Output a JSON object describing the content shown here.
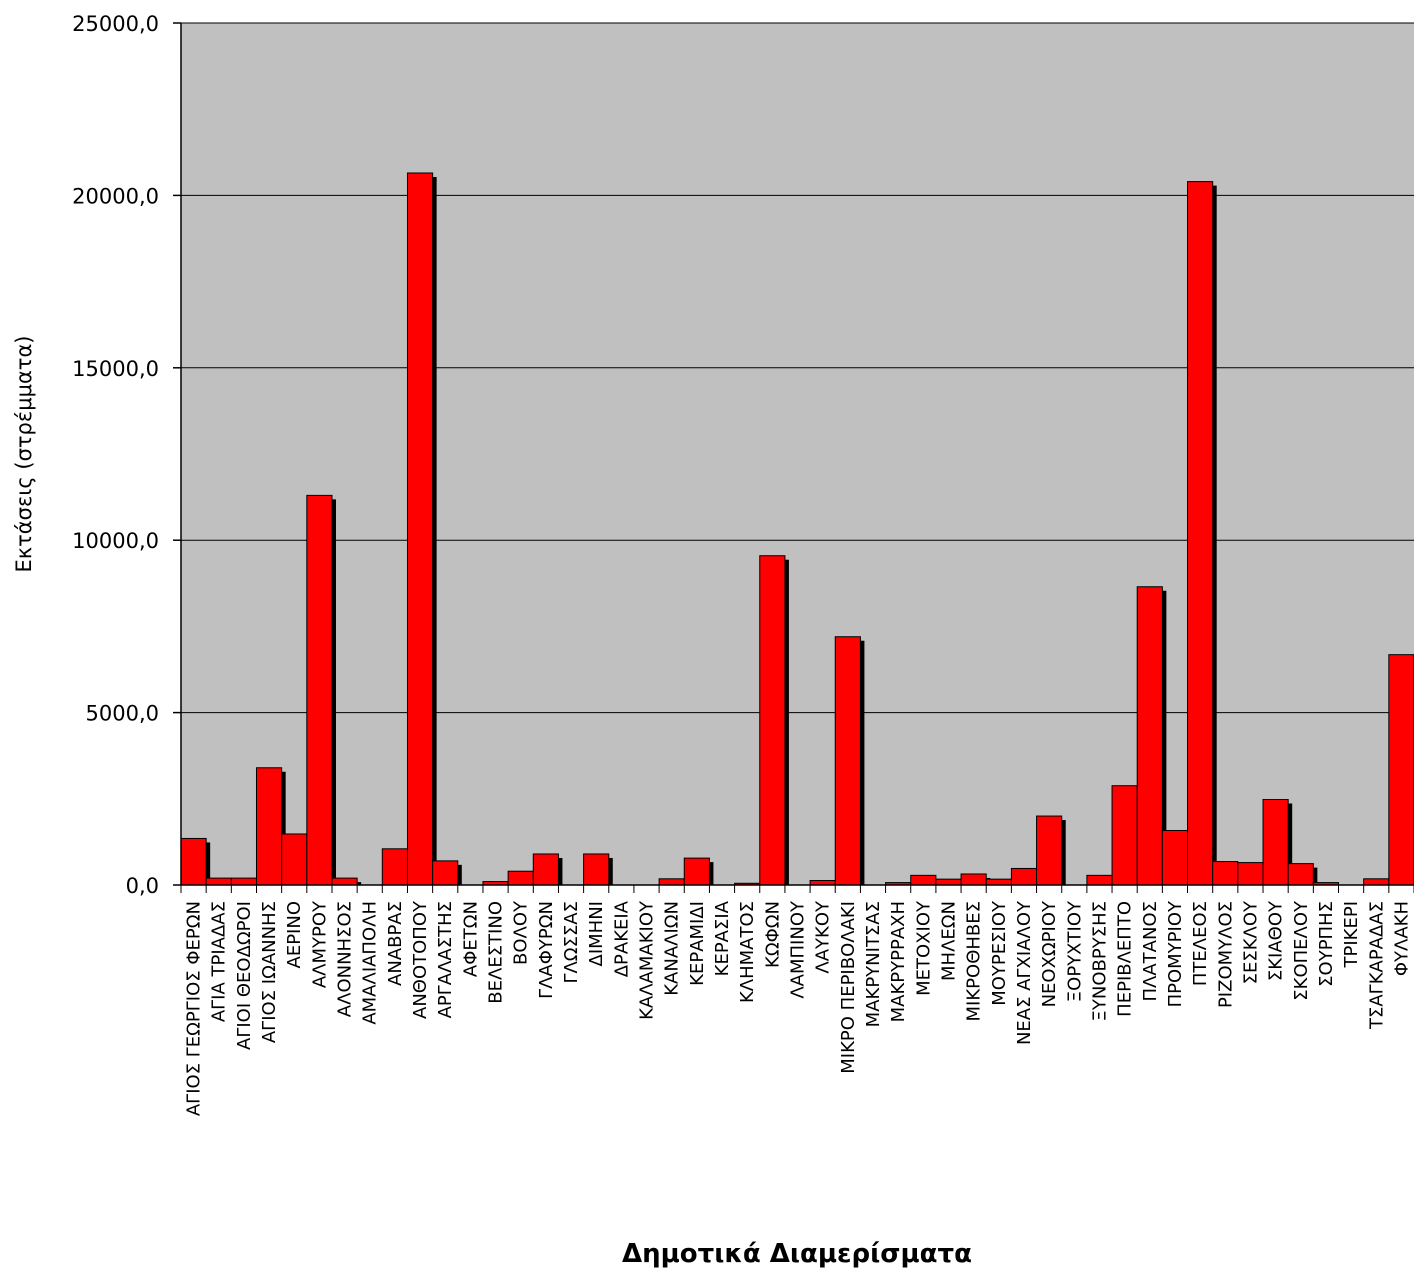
{
  "chart_data": {
    "type": "bar",
    "xlabel": "Δημοτικά Διαμερίσματα",
    "ylabel": "Εκτάσεις (στρέμματα)",
    "ylim": [
      0,
      25000
    ],
    "yticks": [
      0,
      5000,
      10000,
      15000,
      20000,
      25000
    ],
    "ytick_labels": [
      "0,0",
      "5000,0",
      "10000,0",
      "15000,0",
      "20000,0",
      "25000,0"
    ],
    "grid": true,
    "legend": "none",
    "colors": {
      "bar": "#ff0000",
      "shadow": "#000000",
      "plot_bg": "#c0c0c0",
      "grid": "#000000"
    },
    "categories": [
      "ΑΓΙΟΣ ΓΕΩΡΓΙΟΣ ΦΕΡΩΝ",
      "ΑΓΙΑ ΤΡΙΑΔΑΣ",
      "ΑΓΙΟΙ ΘΕΟΔΩΡΟΙ",
      "ΑΓΙΟΣ ΙΩΑΝΝΗΣ",
      "ΑΕΡΙΝΟ",
      "ΑΛΜΥΡΟΥ",
      "ΑΛΟΝΝΗΣΟΣ",
      "ΑΜΑΛΙΑΠΟΛΗ",
      "ΑΝΑΒΡΑΣ",
      "ΑΝΘΟΤΟΠΟΥ",
      "ΑΡΓΑΛΑΣΤΗΣ",
      "ΑΦΕΤΩΝ",
      "ΒΕΛΕΣΤΙΝΟ",
      "ΒΟΛΟΥ",
      "ΓΛΑΦΥΡΩΝ",
      "ΓΛΩΣΣΑΣ",
      "ΔΙΜΗΝΙ",
      "ΔΡΑΚΕΙΑ",
      "ΚΑΛΑΜΑΚΙΟΥ",
      "ΚΑΝΑΛΙΩΝ",
      "ΚΕΡΑΜΙΔΙ",
      "ΚΕΡΑΣΙΑ",
      "ΚΛΗΜΑΤΟΣ",
      "ΚΩΦΩΝ",
      "ΛΑΜΠΙΝΟΥ",
      "ΛΑΥΚΟΥ",
      "ΜΙΚΡΟ ΠΕΡΙΒΟΛΑΚΙ",
      "ΜΑΚΡΥΝΙΤΣΑΣ",
      "ΜΑΚΡΥΡΡΑΧΗ",
      "ΜΕΤΟΧΙΟΥ",
      "ΜΗΛΕΩΝ",
      "ΜΙΚΡΟΘΗΒΕΣ",
      "ΜΟΥΡΕΣΙΟΥ",
      "ΝΕΑΣ ΑΓΧΙΑΛΟΥ",
      "ΝΕΟΧΩΡΙΟΥ",
      "ΞΟΡΥΧΤΙΟΥ",
      "ΞΥΝΟΒΡΥΣΗΣ",
      "ΠΕΡΙΒΛΕΠΤΟ",
      "ΠΛΑΤΑΝΟΣ",
      "ΠΡΟΜΥΡΙΟΥ",
      "ΠΤΕΛΕΟΣ",
      "ΡΙΖΟΜΥΛΟΣ",
      "ΣΕΣΚΛΟΥ",
      "ΣΚΙΑΘΟΥ",
      "ΣΚΟΠΕΛΟΥ",
      "ΣΟΥΡΠΗΣ",
      "ΤΡΙΚΕΡΙ",
      "ΤΣΑΓΚΑΡΑΔΑΣ",
      "ΦΥΛΑΚΗ"
    ],
    "values": [
      1350,
      200,
      200,
      3400,
      1480,
      11300,
      200,
      0,
      1050,
      20650,
      700,
      0,
      100,
      400,
      900,
      0,
      900,
      0,
      0,
      180,
      780,
      0,
      50,
      9550,
      0,
      130,
      7200,
      0,
      70,
      280,
      170,
      320,
      170,
      480,
      2000,
      0,
      280,
      2880,
      8650,
      1580,
      20400,
      680,
      650,
      2480,
      620,
      70,
      0,
      180,
      6680
    ]
  }
}
